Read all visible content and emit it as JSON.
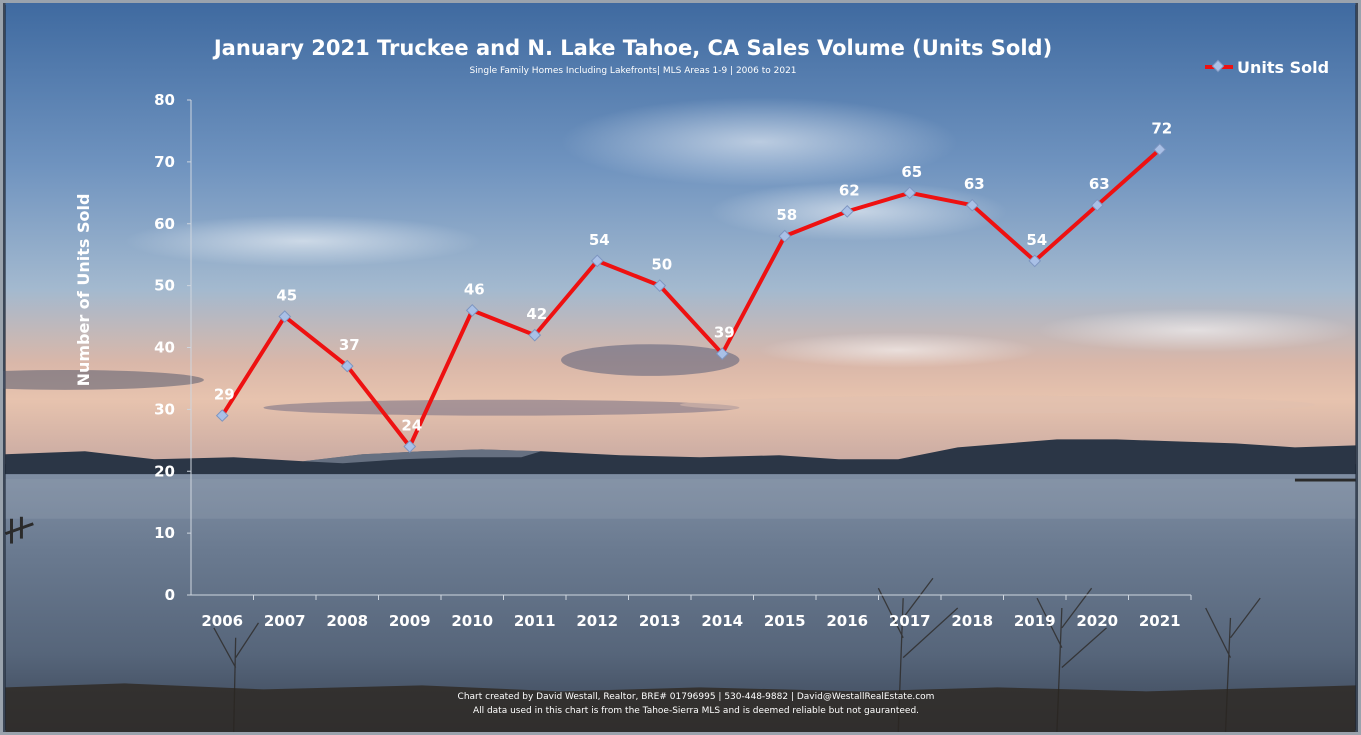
{
  "chart_data": {
    "type": "line",
    "title": "January 2021 Truckee and N. Lake Tahoe, CA Sales Volume (Units Sold)",
    "subtitle": "Single Family Homes Including Lakefronts| MLS Areas 1-9 | 2006 to 2021",
    "xlabel": "",
    "ylabel": "Number of Units Sold",
    "ylim": [
      0,
      80
    ],
    "yticks": [
      "0",
      "10",
      "20",
      "30",
      "40",
      "50",
      "60",
      "70",
      "80"
    ],
    "categories": [
      "2006",
      "2007",
      "2008",
      "2009",
      "2010",
      "2011",
      "2012",
      "2013",
      "2014",
      "2015",
      "2016",
      "2017",
      "2018",
      "2019",
      "2020",
      "2021"
    ],
    "series": [
      {
        "name": "Units Sold",
        "values": [
          29,
          45,
          37,
          24,
          46,
          42,
          54,
          50,
          39,
          58,
          62,
          65,
          63,
          54,
          63,
          72
        ],
        "color": "#ee1111",
        "marker_color": "#a9c0e6"
      }
    ],
    "grid": false,
    "legend_position": "top-right",
    "data_labels": true
  },
  "footer": {
    "line1": "Chart created by David Westall, Realtor, BRE# 01796995 | 530-448-9882 | David@WestallRealEstate.com",
    "line2": "All data used in this chart is from the Tahoe-Sierra MLS and is deemed reliable but  not gauranteed."
  },
  "background": {
    "sky_top": "#4f78a8",
    "sky_mid": "#8ba9c8",
    "horizon": "#e8b9a6",
    "mountains": "#2b3646",
    "water": "#66778c",
    "shore": "#2f2a26"
  }
}
